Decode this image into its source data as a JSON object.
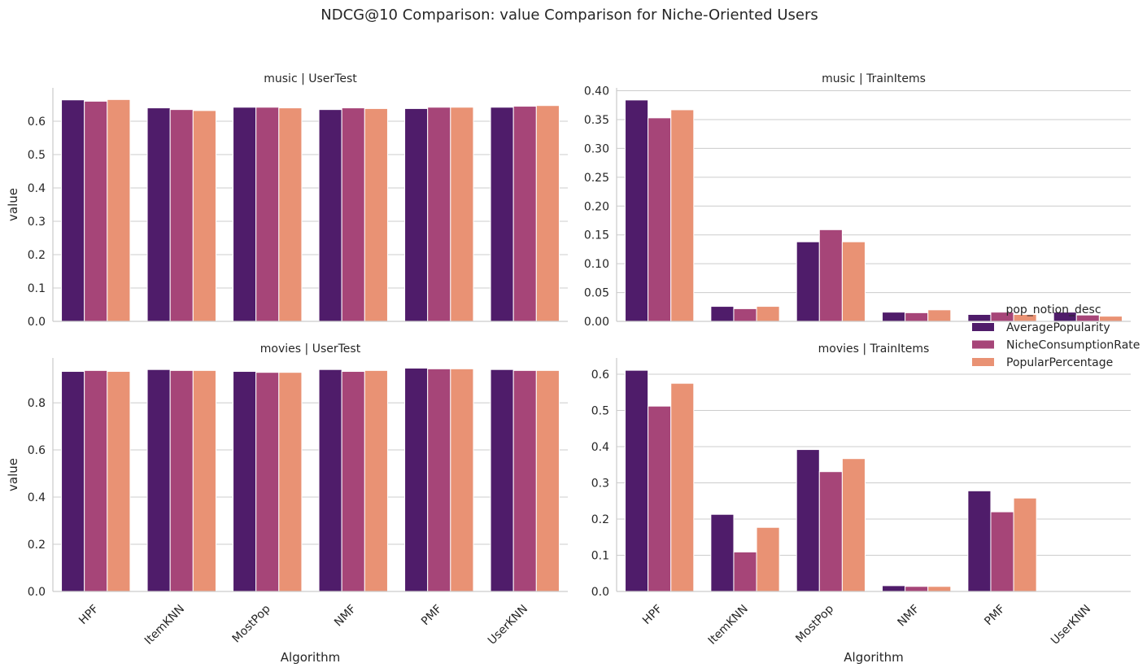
{
  "figure": {
    "title": "NDCG@10 Comparison: value Comparison for Niche-Oriented Users"
  },
  "legend": {
    "title": "pop_notion_desc",
    "placement": "right",
    "items": [
      {
        "name": "AveragePopularity",
        "color": "#4f1c6a"
      },
      {
        "name": "NicheConsumptionRate",
        "color": "#a64578"
      },
      {
        "name": "PopularPercentage",
        "color": "#e99274"
      }
    ]
  },
  "chart_data": [
    {
      "type": "bar",
      "title": "music | UserTest",
      "xlabel": "",
      "ylabel": "value",
      "ylim": [
        0,
        0.7
      ],
      "yticks": [
        0.0,
        0.1,
        0.2,
        0.3,
        0.4,
        0.5,
        0.6
      ],
      "tick_format": "1",
      "grid": true,
      "categories": [
        "HPF",
        "ItemKNN",
        "MostPop",
        "NMF",
        "PMF",
        "UserKNN"
      ],
      "series": [
        {
          "name": "AveragePopularity",
          "values": [
            0.664,
            0.64,
            0.642,
            0.635,
            0.638,
            0.642
          ]
        },
        {
          "name": "NicheConsumptionRate",
          "values": [
            0.66,
            0.635,
            0.642,
            0.64,
            0.642,
            0.645
          ]
        },
        {
          "name": "PopularPercentage",
          "values": [
            0.665,
            0.632,
            0.64,
            0.638,
            0.642,
            0.647
          ]
        }
      ]
    },
    {
      "type": "bar",
      "title": "music | TrainItems",
      "xlabel": "",
      "ylabel": "",
      "ylim": [
        0,
        0.405
      ],
      "yticks": [
        0.0,
        0.05,
        0.1,
        0.15,
        0.2,
        0.25,
        0.3,
        0.35,
        0.4
      ],
      "tick_format": "2",
      "grid": true,
      "categories": [
        "HPF",
        "ItemKNN",
        "MostPop",
        "NMF",
        "PMF",
        "UserKNN"
      ],
      "series": [
        {
          "name": "AveragePopularity",
          "values": [
            0.384,
            0.026,
            0.138,
            0.016,
            0.012,
            0.016
          ]
        },
        {
          "name": "NicheConsumptionRate",
          "values": [
            0.353,
            0.022,
            0.159,
            0.015,
            0.016,
            0.011
          ]
        },
        {
          "name": "PopularPercentage",
          "values": [
            0.367,
            0.026,
            0.138,
            0.02,
            0.012,
            0.009
          ]
        }
      ]
    },
    {
      "type": "bar",
      "title": "movies | UserTest",
      "xlabel": "Algorithm",
      "ylabel": "value",
      "ylim": [
        0,
        0.99
      ],
      "yticks": [
        0.0,
        0.2,
        0.4,
        0.6,
        0.8
      ],
      "tick_format": "1",
      "grid": true,
      "categories": [
        "HPF",
        "ItemKNN",
        "MostPop",
        "NMF",
        "PMF",
        "UserKNN"
      ],
      "series": [
        {
          "name": "AveragePopularity",
          "values": [
            0.933,
            0.941,
            0.933,
            0.941,
            0.947,
            0.941
          ]
        },
        {
          "name": "NicheConsumptionRate",
          "values": [
            0.937,
            0.937,
            0.929,
            0.933,
            0.944,
            0.937
          ]
        },
        {
          "name": "PopularPercentage",
          "values": [
            0.933,
            0.937,
            0.929,
            0.937,
            0.944,
            0.937
          ]
        }
      ]
    },
    {
      "type": "bar",
      "title": "movies | TrainItems",
      "xlabel": "Algorithm",
      "ylabel": "",
      "ylim": [
        0,
        0.645
      ],
      "yticks": [
        0.0,
        0.1,
        0.2,
        0.3,
        0.4,
        0.5,
        0.6
      ],
      "tick_format": "1",
      "grid": true,
      "categories": [
        "HPF",
        "ItemKNN",
        "MostPop",
        "NMF",
        "PMF",
        "UserKNN"
      ],
      "series": [
        {
          "name": "AveragePopularity",
          "values": [
            0.611,
            0.213,
            0.392,
            0.016,
            0.278,
            0.002
          ]
        },
        {
          "name": "NicheConsumptionRate",
          "values": [
            0.512,
            0.109,
            0.331,
            0.014,
            0.22,
            0.001
          ]
        },
        {
          "name": "PopularPercentage",
          "values": [
            0.575,
            0.177,
            0.367,
            0.014,
            0.258,
            0.001
          ]
        }
      ]
    }
  ]
}
